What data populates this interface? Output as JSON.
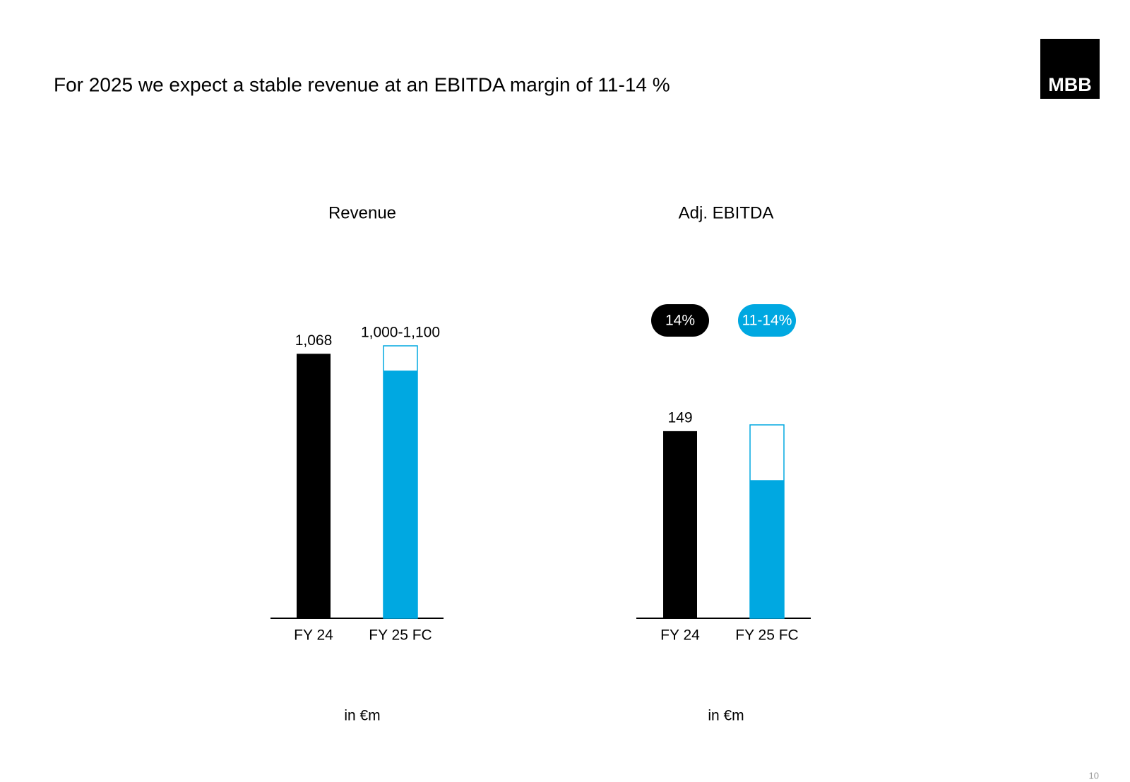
{
  "header": {
    "title": "For 2025 we expect a stable revenue at an EBITDA margin of 11-14 %"
  },
  "logo": "MBB",
  "page_number": "10",
  "chart_data": [
    {
      "type": "bar",
      "title": "Revenue",
      "unit": "in €m",
      "categories": [
        "FY 24",
        "FY 25 FC"
      ],
      "values": [
        1068,
        1000
      ],
      "range_top": [
        null,
        1100
      ],
      "value_labels": [
        "1,068",
        "1,000-1,100"
      ],
      "colors": [
        "#000000",
        "#00a8e1"
      ],
      "ylim": [
        0,
        1100
      ]
    },
    {
      "type": "bar",
      "title": "Adj. EBITDA",
      "unit": "in €m",
      "categories": [
        "FY 24",
        "FY 25 FC"
      ],
      "values": [
        149,
        110
      ],
      "range_top": [
        null,
        154
      ],
      "value_labels": [
        "149",
        null
      ],
      "margin_labels": [
        "14%",
        "11-14%"
      ],
      "colors": [
        "#000000",
        "#00a8e1"
      ],
      "ylim": [
        0,
        154
      ]
    }
  ]
}
